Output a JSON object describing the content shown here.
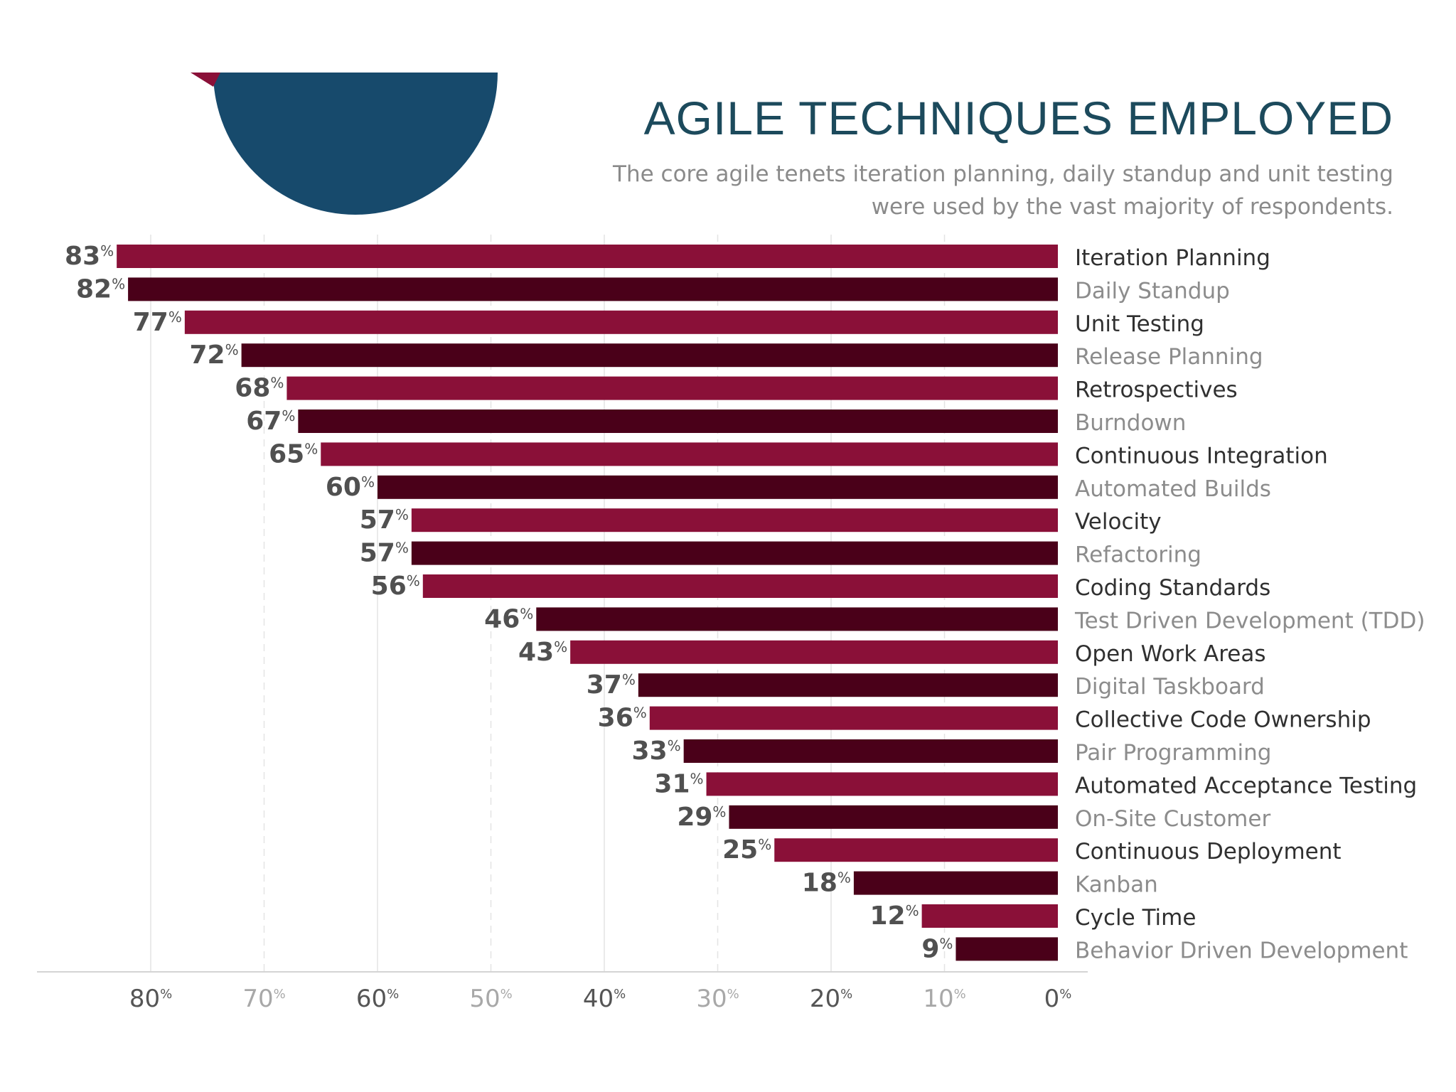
{
  "chart_data": {
    "type": "bar",
    "orientation": "horizontal",
    "title": "AGILE TECHNIQUES EMPLOYED",
    "subtitle": "The core agile tenets iteration planning, daily standup and unit testing were used by the vast majority of respondents.",
    "categories": [
      "Iteration Planning",
      "Daily Standup",
      "Unit Testing",
      "Release Planning",
      "Retrospectives",
      "Burndown",
      "Continuous Integration",
      "Automated Builds",
      "Velocity",
      "Refactoring",
      "Coding Standards",
      "Test Driven Development (TDD)",
      "Open Work Areas",
      "Digital Taskboard",
      "Collective Code Ownership",
      "Pair Programming",
      "Automated Acceptance Testing",
      "On-Site Customer",
      "Continuous Deployment",
      "Kanban",
      "Cycle Time",
      "Behavior Driven Development"
    ],
    "values": [
      83,
      82,
      77,
      72,
      68,
      67,
      65,
      60,
      57,
      57,
      56,
      46,
      43,
      37,
      36,
      33,
      31,
      29,
      25,
      18,
      12,
      9
    ],
    "value_suffix": "%",
    "xlim": [
      0,
      80
    ],
    "x_ticks": [
      80,
      70,
      60,
      50,
      40,
      30,
      20,
      10,
      0
    ],
    "tick_suffix": "%",
    "x_direction": "reversed",
    "grid": true,
    "legend": "none",
    "colors": {
      "bar_a": "#8a1038",
      "bar_b": "#4a0019",
      "label_a": "#303030",
      "label_b": "#8c8c8c",
      "tick_a": "#555555",
      "tick_b": "#a8a8a8",
      "title": "#1c4a5c",
      "pie_blue": "#174a6c",
      "pie_red": "#8a1038"
    }
  }
}
